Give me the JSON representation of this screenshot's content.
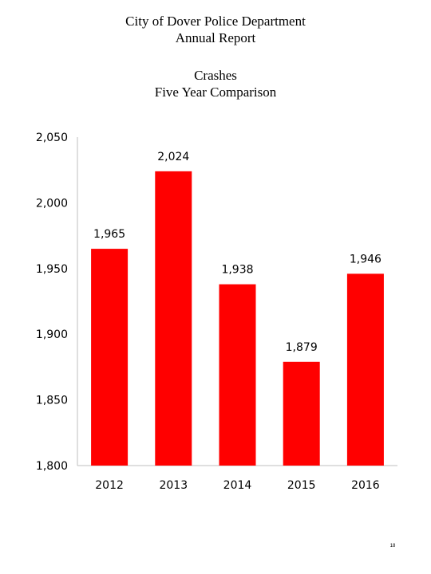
{
  "header": {
    "line1": "City of Dover Police Department",
    "line2": "Annual Report"
  },
  "chart_data": {
    "type": "bar",
    "title": "Crashes",
    "subtitle": "Five Year Comparison",
    "categories": [
      "2012",
      "2013",
      "2014",
      "2015",
      "2016"
    ],
    "values": [
      1965,
      2024,
      1938,
      1879,
      1946
    ],
    "value_labels": [
      "1,965",
      "2,024",
      "1,938",
      "1,879",
      "1,946"
    ],
    "ylim": [
      1800,
      2050
    ],
    "yticks": [
      1800,
      1850,
      1900,
      1950,
      2000,
      2050
    ],
    "ytick_labels": [
      "1,800",
      "1,850",
      "1,900",
      "1,950",
      "2,000",
      "2,050"
    ],
    "xlabel": "",
    "ylabel": "",
    "grid": false,
    "legend": "none",
    "bar_color": "#ff0000"
  },
  "footer": {
    "page_number": "18"
  }
}
